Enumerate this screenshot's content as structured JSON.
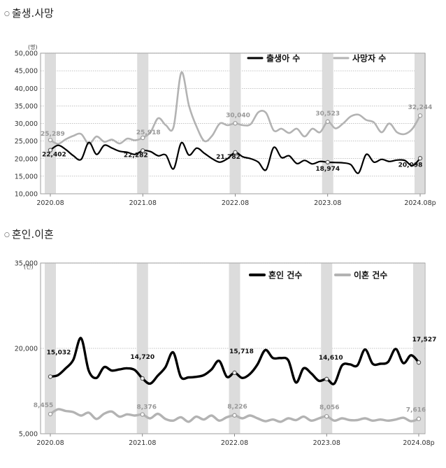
{
  "charts": [
    {
      "title": "출생.사망",
      "unit": "(명)",
      "type": "line",
      "x_labels": [
        "2020.08",
        "2021.08",
        "2022.08",
        "2023.08",
        "2024.08p"
      ],
      "y_ticks": [
        "10,000",
        "15,000",
        "20,000",
        "25,000",
        "30,000",
        "35,000",
        "40,000",
        "45,000",
        "50,000"
      ],
      "legend": [
        "출생아 수",
        "사망자 수"
      ],
      "colors": {
        "series1": "#000000",
        "series2": "#b3b3b3",
        "band": "#dcdcdc"
      }
    },
    {
      "title": "혼인.이혼",
      "unit": "(건)",
      "type": "line",
      "x_labels": [
        "2020.08",
        "2021.08",
        "2022.08",
        "2023.08",
        "2024.08p"
      ],
      "y_ticks": [
        "5,000",
        "20,000",
        "35,000"
      ],
      "legend": [
        "혼인 건수",
        "이혼 건수"
      ],
      "colors": {
        "series1": "#000000",
        "series2": "#b3b3b3",
        "band": "#dcdcdc"
      }
    }
  ],
  "chart_data": [
    {
      "type": "line",
      "title": "출생.사망",
      "ylabel": "(명)",
      "ylim": [
        10000,
        50000
      ],
      "x_start": "2020-08",
      "categories_labeled": [
        "2020.08",
        "2021.08",
        "2022.08",
        "2023.08",
        "2024.08p"
      ],
      "series": [
        {
          "name": "출생아 수",
          "values": [
            22402,
            23800,
            22600,
            20800,
            19800,
            24600,
            21200,
            23800,
            23000,
            22100,
            21800,
            21200,
            22282,
            22000,
            20800,
            21000,
            17100,
            24500,
            21000,
            23000,
            21500,
            20000,
            19000,
            20000,
            21782,
            20500,
            20000,
            19000,
            16800,
            23200,
            20300,
            20800,
            18600,
            19500,
            18500,
            19200,
            18974,
            18900,
            18800,
            18300,
            15900,
            21200,
            19000,
            19800,
            19200,
            19600,
            19500,
            18000,
            20098
          ],
          "point_labels": {
            "0": "22,402",
            "12": "22,282",
            "24": "21,782",
            "36": "18,974",
            "48": "20,098"
          }
        },
        {
          "name": "사망자 수",
          "values": [
            25289,
            24200,
            25500,
            26500,
            27000,
            24200,
            26300,
            24800,
            25400,
            24300,
            25700,
            25200,
            25918,
            27500,
            31500,
            29500,
            29000,
            44500,
            35000,
            29000,
            25000,
            26500,
            30000,
            29500,
            30040,
            29500,
            29800,
            33200,
            33000,
            28000,
            28500,
            27300,
            28500,
            26300,
            28500,
            27500,
            30523,
            28600,
            30000,
            32000,
            32500,
            31000,
            30300,
            27500,
            30000,
            27500,
            27000,
            28500,
            32244
          ],
          "point_labels": {
            "0": "25,289",
            "12": "25,918",
            "24": "30,040",
            "36": "30,523",
            "48": "32,244"
          }
        }
      ]
    },
    {
      "type": "line",
      "title": "혼인.이혼",
      "ylabel": "(건)",
      "ylim": [
        5000,
        35000
      ],
      "x_start": "2020-08",
      "categories_labeled": [
        "2020.08",
        "2021.08",
        "2022.08",
        "2023.08",
        "2024.08p"
      ],
      "series": [
        {
          "name": "혼인 건수",
          "values": [
            15032,
            15300,
            16500,
            18000,
            21800,
            16100,
            14800,
            16700,
            16100,
            16300,
            16500,
            16200,
            14720,
            13800,
            15200,
            16700,
            19300,
            15000,
            14900,
            15000,
            15300,
            16300,
            17800,
            15000,
            15718,
            14800,
            15500,
            17200,
            19700,
            18300,
            18300,
            17900,
            14000,
            16500,
            15600,
            14300,
            14610,
            13800,
            17000,
            17200,
            17000,
            19800,
            17300,
            17300,
            17600,
            19900,
            17400,
            18800,
            17527
          ],
          "point_labels": {
            "0": "15,032",
            "12": "14,720",
            "24": "15,718",
            "36": "14,610",
            "48": "17,527"
          }
        },
        {
          "name": "이혼 건수",
          "values": [
            8455,
            9300,
            9000,
            8800,
            8200,
            8700,
            7600,
            8500,
            8900,
            8000,
            8400,
            8200,
            8376,
            7700,
            8500,
            7600,
            7300,
            7900,
            7100,
            8000,
            7500,
            8200,
            7300,
            7900,
            8226,
            7700,
            8200,
            7700,
            7200,
            7500,
            7100,
            7700,
            7400,
            8000,
            7300,
            7700,
            8056,
            7300,
            7700,
            7400,
            7400,
            7700,
            7300,
            7500,
            7300,
            7500,
            7800,
            7200,
            7616
          ],
          "point_labels": {
            "0": "8,455",
            "12": "8,376",
            "24": "8,226",
            "36": "8,056",
            "48": "7,616"
          }
        }
      ]
    }
  ]
}
